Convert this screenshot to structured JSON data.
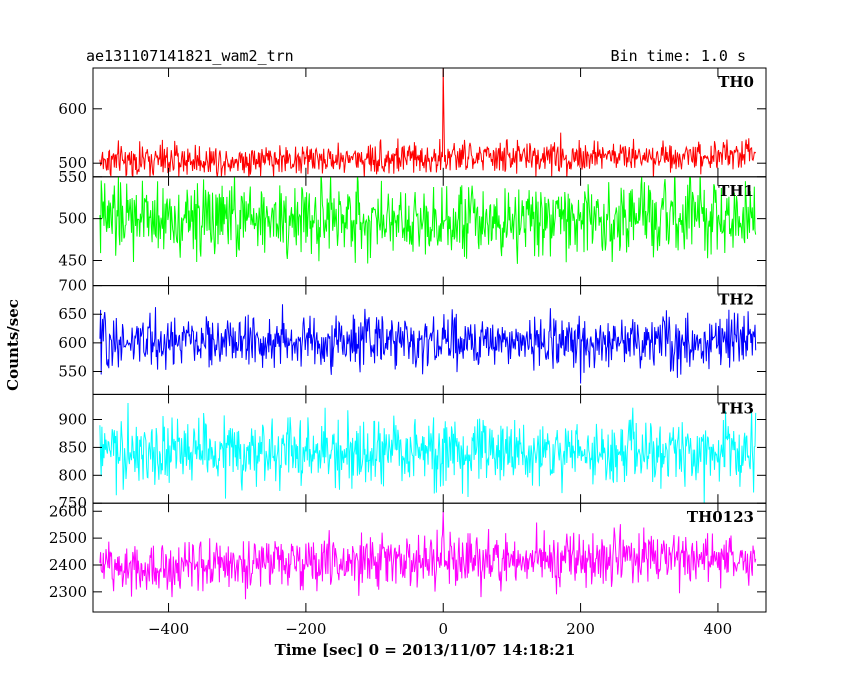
{
  "header": {
    "title": "ae131107141821_wam2_trn",
    "bin_time": "Bin time: 1.0 s"
  },
  "chart_data": {
    "type": "line",
    "xlabel": "Time [sec] 0 = 2013/11/07 14:18:21",
    "ylabel": "Counts/sec",
    "xlim": [
      -510,
      470
    ],
    "x_ticks": [
      -400,
      -200,
      0,
      200,
      400
    ],
    "x_tick_labels": [
      "−400",
      "−200",
      "0",
      "200",
      "400"
    ],
    "x_range": [
      -500,
      455
    ],
    "bin_time_s": 1.0,
    "panels": [
      {
        "name": "TH0",
        "color": "#ff0000",
        "ylim": [
          475,
          675
        ],
        "yticks": [
          500,
          600
        ],
        "mean": 510,
        "noise": 15,
        "spike": {
          "x": 0,
          "y": 678
        },
        "trend": 6
      },
      {
        "name": "TH1",
        "color": "#00ff00",
        "ylim": [
          420,
          550
        ],
        "yticks": [
          450,
          500,
          550
        ],
        "mean": 500,
        "noise": 22,
        "spike": null,
        "trend": 0
      },
      {
        "name": "TH2",
        "color": "#0000ff",
        "ylim": [
          510,
          700
        ],
        "yticks": [
          550,
          600,
          650,
          700
        ],
        "mean": 602,
        "noise": 23,
        "spike": null,
        "trend": 0
      },
      {
        "name": "TH3",
        "color": "#00ffff",
        "ylim": [
          750,
          945
        ],
        "yticks": [
          750,
          800,
          850,
          900
        ],
        "mean": 840,
        "noise": 30,
        "spike": null,
        "trend": 0
      },
      {
        "name": "TH0123",
        "color": "#ff00ff",
        "ylim": [
          2225,
          2630
        ],
        "yticks": [
          2300,
          2400,
          2500,
          2600
        ],
        "mean": 2415,
        "noise": 48,
        "spike": {
          "x": 0,
          "y": 2600
        },
        "trend": 20
      }
    ]
  }
}
